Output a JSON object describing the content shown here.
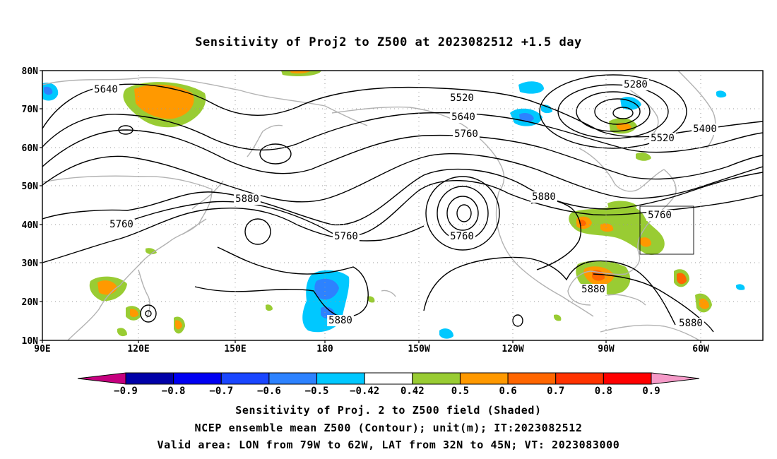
{
  "title": "Sensitivity of Proj2 to Z500 at 2023082512 +1.5 day",
  "axes": {
    "lat_ticks": [
      "80N",
      "70N",
      "60N",
      "50N",
      "40N",
      "30N",
      "20N",
      "10N"
    ],
    "lon_ticks": [
      "90E",
      "120E",
      "150E",
      "180",
      "150W",
      "120W",
      "90W",
      "60W"
    ],
    "lon_range": [
      "90E",
      "30W"
    ],
    "lat_range": [
      "10N",
      "80N"
    ],
    "grid": true
  },
  "contour_labels": [
    {
      "text": "5640"
    },
    {
      "text": "5520"
    },
    {
      "text": "5640"
    },
    {
      "text": "5760"
    },
    {
      "text": "5280"
    },
    {
      "text": "5400"
    },
    {
      "text": "5520"
    },
    {
      "text": "5880"
    },
    {
      "text": "5760"
    },
    {
      "text": "5760"
    },
    {
      "text": "5760"
    },
    {
      "text": "5880"
    },
    {
      "text": "5760"
    },
    {
      "text": "5880"
    },
    {
      "text": "5880"
    },
    {
      "text": "5880"
    }
  ],
  "colorbar": {
    "labels": [
      "−0.9",
      "−0.8",
      "−0.7",
      "−0.6",
      "−0.5",
      "−0.42",
      "0.42",
      "0.5",
      "0.6",
      "0.7",
      "0.8",
      "0.9"
    ],
    "colors": {
      "under": "#c6007f",
      "bins": [
        "#0000a8",
        "#0000f2",
        "#1a46ff",
        "#2d82ff",
        "#00c8ff",
        "#ffffff",
        "#99cc33",
        "#ff9900",
        "#ff6600",
        "#ff3300",
        "#ff0000"
      ],
      "over": "#f59ac8"
    }
  },
  "footer": {
    "line1": "Sensitivity of Proj. 2 to Z500 field (Shaded)",
    "line2": "NCEP ensemble mean Z500 (Contour); unit(m); IT:2023082512",
    "line3": "Valid area: LON from 79W to 62W, LAT from 32N to 45N; VT: 2023083000"
  }
}
